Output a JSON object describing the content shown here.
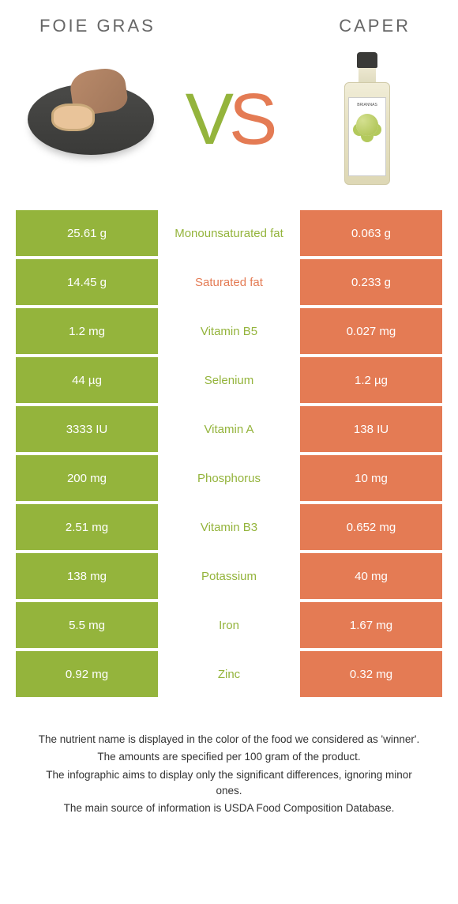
{
  "left_food": "FOIE GRAS",
  "right_food": "CAPER",
  "vs": {
    "v": "V",
    "s": "S"
  },
  "colors": {
    "left": "#94b43c",
    "right": "#e47b54",
    "bg": "#ffffff",
    "text": "#333333"
  },
  "bottle_brand": "BRIANNAS",
  "rows": [
    {
      "left": "25.61 g",
      "mid": "Monounsaturated fat",
      "right": "0.063 g",
      "winner": "left"
    },
    {
      "left": "14.45 g",
      "mid": "Saturated fat",
      "right": "0.233 g",
      "winner": "right"
    },
    {
      "left": "1.2 mg",
      "mid": "Vitamin B5",
      "right": "0.027 mg",
      "winner": "left"
    },
    {
      "left": "44 µg",
      "mid": "Selenium",
      "right": "1.2 µg",
      "winner": "left"
    },
    {
      "left": "3333 IU",
      "mid": "Vitamin A",
      "right": "138 IU",
      "winner": "left"
    },
    {
      "left": "200 mg",
      "mid": "Phosphorus",
      "right": "10 mg",
      "winner": "left"
    },
    {
      "left": "2.51 mg",
      "mid": "Vitamin B3",
      "right": "0.652 mg",
      "winner": "left"
    },
    {
      "left": "138 mg",
      "mid": "Potassium",
      "right": "40 mg",
      "winner": "left"
    },
    {
      "left": "5.5 mg",
      "mid": "Iron",
      "right": "1.67 mg",
      "winner": "left"
    },
    {
      "left": "0.92 mg",
      "mid": "Zinc",
      "right": "0.32 mg",
      "winner": "left"
    }
  ],
  "footer": [
    "The nutrient name is displayed in the color of the food we considered as 'winner'.",
    "The amounts are specified per 100 gram of the product.",
    "The infographic aims to display only the significant differences, ignoring minor ones.",
    "The main source of information is USDA Food Composition Database."
  ]
}
